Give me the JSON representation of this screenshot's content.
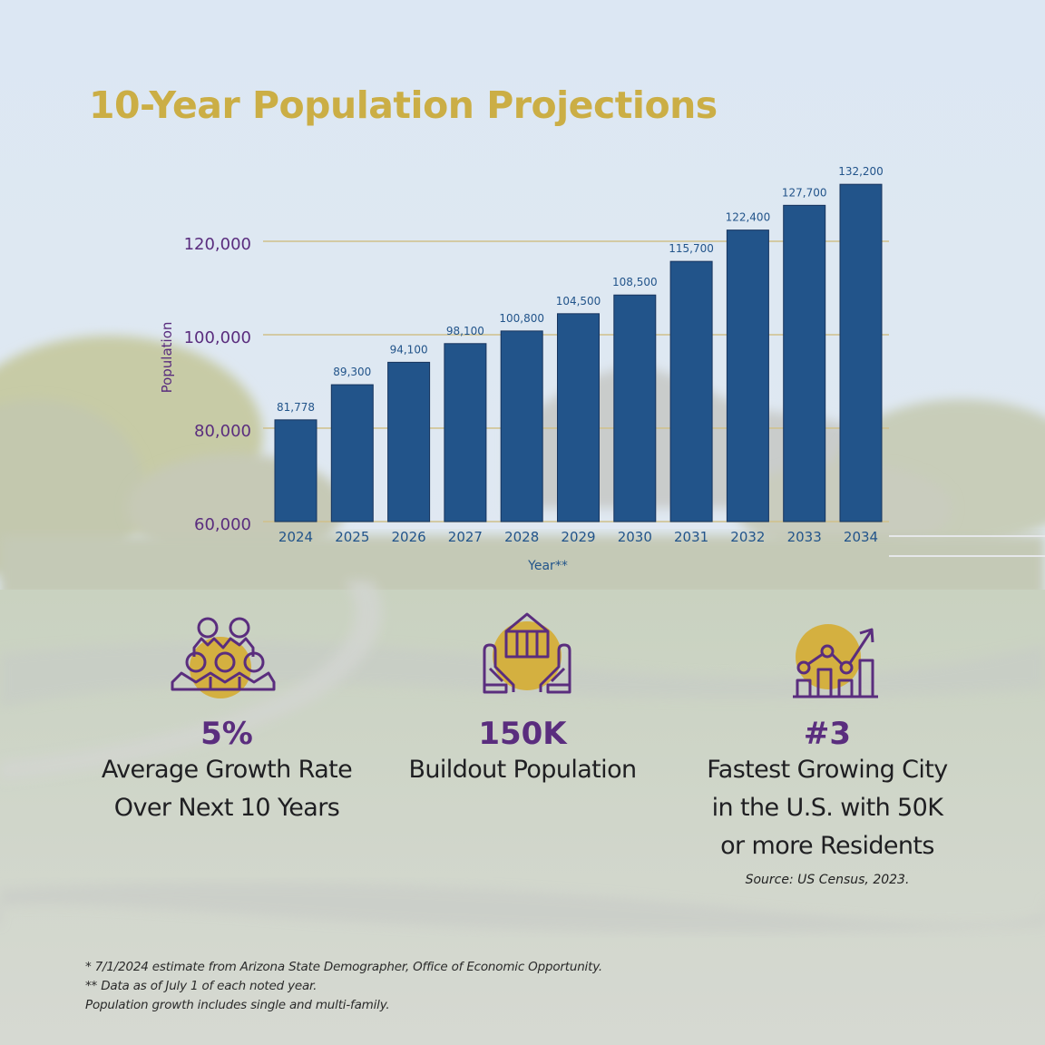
{
  "title": "10-Year Population Projections",
  "colors": {
    "title": "#CBAE45",
    "bar": "#22548A",
    "bar_edge": "#17345E",
    "gridline": "#CFC08A",
    "axis_text_purple": "#5A2D7E",
    "axis_text_blue": "#22548A",
    "icon_circle": "#D4B040",
    "icon_stroke": "#5A2D7E",
    "stat_value": "#5A2D7E",
    "stat_label": "#1f1f22"
  },
  "chart_data": {
    "type": "bar",
    "title": "10-Year Population Projections",
    "xlabel": "Year**",
    "ylabel": "Population",
    "categories": [
      "2024",
      "2025",
      "2026",
      "2027",
      "2028",
      "2029",
      "2030",
      "2031",
      "2032",
      "2033",
      "2034"
    ],
    "values": [
      81778,
      89300,
      94100,
      98100,
      100800,
      104500,
      108500,
      115700,
      122400,
      127700,
      132200
    ],
    "data_labels": [
      "81,778",
      "89,300",
      "94,100",
      "98,100",
      "100,800",
      "104,500",
      "108,500",
      "115,700",
      "122,400",
      "127,700",
      "132,200"
    ],
    "ylim": [
      60000,
      135000
    ],
    "yticks": [
      60000,
      80000,
      100000,
      120000
    ],
    "ytick_labels": [
      "60,000",
      "80,000",
      "100,000",
      "120,000"
    ],
    "grid": true,
    "legend": "none"
  },
  "stats": [
    {
      "icon": "people-group-icon",
      "value": "5%",
      "label_lines": [
        "Average Growth Rate",
        "Over Next 10 Years"
      ]
    },
    {
      "icon": "hands-holding-house-icon",
      "value": "150K",
      "label_lines": [
        "Buildout Population"
      ]
    },
    {
      "icon": "growth-chart-icon",
      "value": "#3",
      "label_lines": [
        "Fastest Growing City",
        "in the U.S. with 50K",
        "or more Residents"
      ],
      "source": "Source: US Census, 2023."
    }
  ],
  "footnotes": [
    "* 7/1/2024 estimate from Arizona State Demographer, Office of Economic Opportunity.",
    "** Data as of July 1 of each noted year.",
    "Population growth includes single and multi-family."
  ]
}
